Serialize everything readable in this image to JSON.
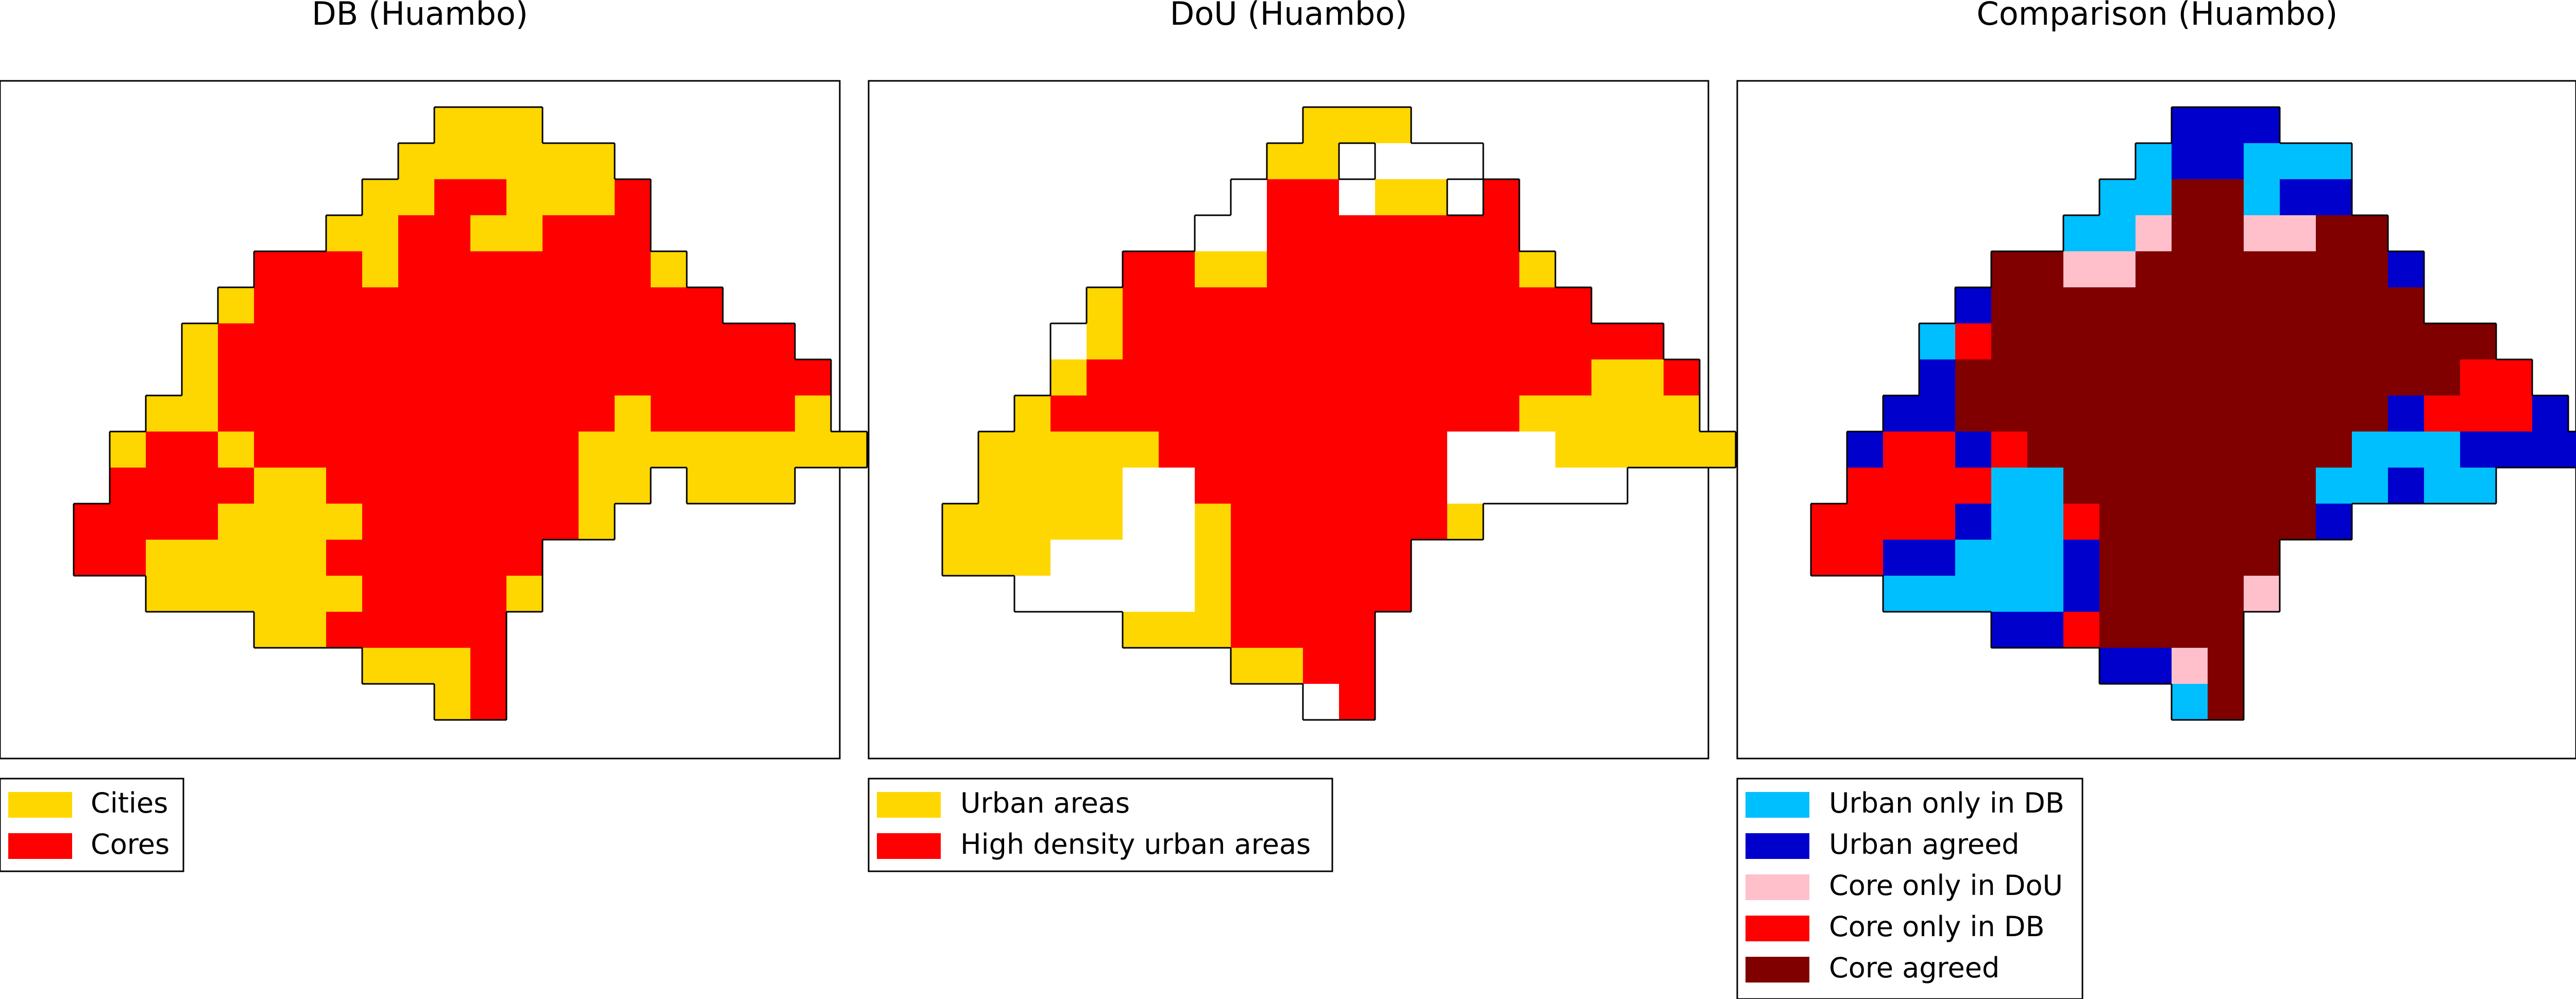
{
  "panels": [
    {
      "title": "DB (Huambo)",
      "legend": [
        {
          "label": "Cities",
          "color": "#FFD700"
        },
        {
          "label": "Cores",
          "color": "#FF0000"
        }
      ],
      "grid": [
        "...........xxx.........",
        "..........xxxxxx.......",
        ".........xxxxxxxx......",
        "........xxxxxxxxxx.....",
        "......xxxxxxxxxxxxx....",
        ".....xxxxxxxxxxxxxxx...",
        "....xxxxxxxxxxxxxxxxx..",
        "....xxxxxxxxxxxxxxxxxx.",
        "...xxxxxxxxxxxxxxxxxxx.",
        "..xxxxxxxxxxxxxxxxxxxxx",
        "..xxxxxxxxxxxxxxxxxxxx.",
        ".xxxxxxxxxxxxxxx.......",
        ".xxxxxxxxxxxxxx........",
        "...xxxxxxxxxxx.........",
        "......xxxxxxx..........",
        ".........xxxx..........",
        "...........xx.........."
      ]
    },
    {
      "title": "DoU (Huambo)",
      "legend": [
        {
          "label": "Urban areas",
          "color": "#FFD700"
        },
        {
          "label": "High density urban areas",
          "color": "#FF0000"
        }
      ],
      "grid": [
        "...........xxx.........",
        "..........xxxxxx.......",
        ".........xxxxxxxx......",
        "........xxxxxxxxxx.....",
        "......xxxxxxxxxxxxx....",
        ".....xxxxxxxxxxxxxxx...",
        "....xxxxxxxxxxxxxxxxx..",
        "....xxxxxxxxxxxxxxxxxx.",
        "...xxxxxxxxxxxxxxxxxxx.",
        "..xxxxxxxxxxxxxxxxxxxxx",
        "..xxxxxxxxxxxxxxxxxxxx.",
        ".xxxxxxxxxxxxxxx.......",
        ".xxxxxxxxxxxxxx........",
        "...xxxxxxxxxxx.........",
        "......xxxxxxx..........",
        ".........xxxx..........",
        "...........xx.........."
      ]
    },
    {
      "title": "Comparison (Huambo)",
      "legend": [
        {
          "label": "Urban only in DB",
          "color": "#00BFFF"
        },
        {
          "label": "Urban agreed",
          "color": "#0000CD"
        },
        {
          "label": "Core only in DoU",
          "color": "#FFC0CB"
        },
        {
          "label": "Core only in DB",
          "color": "#FF0000"
        },
        {
          "label": "Core agreed",
          "color": "#800000"
        }
      ],
      "grid": [
        "...........xxx.........",
        "..........xxxxxx.......",
        ".........xxxxxxxx......",
        "........xxxxxxxxxx.....",
        "......xxxxxxxxxxxxx....",
        ".....xxxxxxxxxxxxxxx...",
        "....xxxxxxxxxxxxxxxxx..",
        "....xxxxxxxxxxxxxxxxxx.",
        "...xxxxxxxxxxxxxxxxxxx.",
        "..xxxxxxxxxxxxxxxxxxxxx",
        "..xxxxxxxxxxxxxxxxxxxx.",
        ".xxxxxxxxxxxxxxx.......",
        ".xxxxxxxxxxxxxx........",
        "...xxxxxxxxxxx.........",
        "......xxxxxxx..........",
        ".........xxxx..........",
        "...........xx.........."
      ]
    }
  ],
  "maps": {
    "db": [
      "...........YYY.........",
      "..........YYYYYY.......",
      ".........YYRRYYYR......",
      "........YYRRYYRRR.....",
      "......RRRYRRRRRRRY....",
      ".....YRRRRRRRRRRRRR...",
      "....YRRRRRRRRRRRRRRRR..",
      "....YRRRRRRRRRRRRRRRRR.",
      "...YYRRRRRRRRRRRYRRRRY.",
      "..YRRYRRRRRRRRRYYYYYYYY",
      "..RRRRYYRRRRRRRYY.YYY..",
      ".RRRRYYYYRRRRRRY.......",
      ".RRYYYYYRRRRRR.........",
      "...YYYYYYRRRRY.........",
      "......YYRRRRR..........",
      ".........YYYR..........",
      "...........YR.........."
    ],
    "dou": [
      "...........YYY.........",
      "..........YY.WWW.......",
      ".........WRRWYY.R......",
      "........WWRRRRRRR.....",
      "......RRYYRRRRRRRY....",
      ".....YRRRRRRRRRRRRR...",
      "....WYRRRRRRRRRRRRRRR..",
      "....YRRRRRRRRRRRRRRYYR.",
      "...YRRRRRRRRRRRRRYYYYY.",
      "..YYYYYRRRRRRRRWWWYYYYY",
      "..YYYYWWRRRRRRRWWWWW...",
      ".YYYYYWWYRRRRRRY.......",
      ".YYYWWWWYRRRRR.........",
      "...WWWWWYRRRRR.........",
      "......YYYRRRR..........",
      ".........YYRR..........",
      "...........WR.........."
    ],
    "cmp": [
      "...........BBB.........",
      "..........LBBLLL.......",
      ".........LLMMLBB.......",
      "........LLPMMPPMM.....",
      "......MMPPMMMMMMMB....",
      ".....BMMMMMMMMMMMM....",
      "....LRMMMMMMMMMMMMMM...",
      "....BMMMMMMMMMMMMMMRR..",
      "...BBMMMMMMMMMMMMBRRRB.",
      "..BRRBRMMMMMMMMMLLLBBBB",
      "..RRRRLLMMMMMMMLLBLL...",
      ".RRRRBLLRMMMMMMB.......",
      ".RRBBLLLBMMMMM.........",
      "...LLLLLBMMMMP.........",
      "......BBRMMMM..........",
      ".........BBPM..........",
      "...........LM.........."
    ]
  }
}
